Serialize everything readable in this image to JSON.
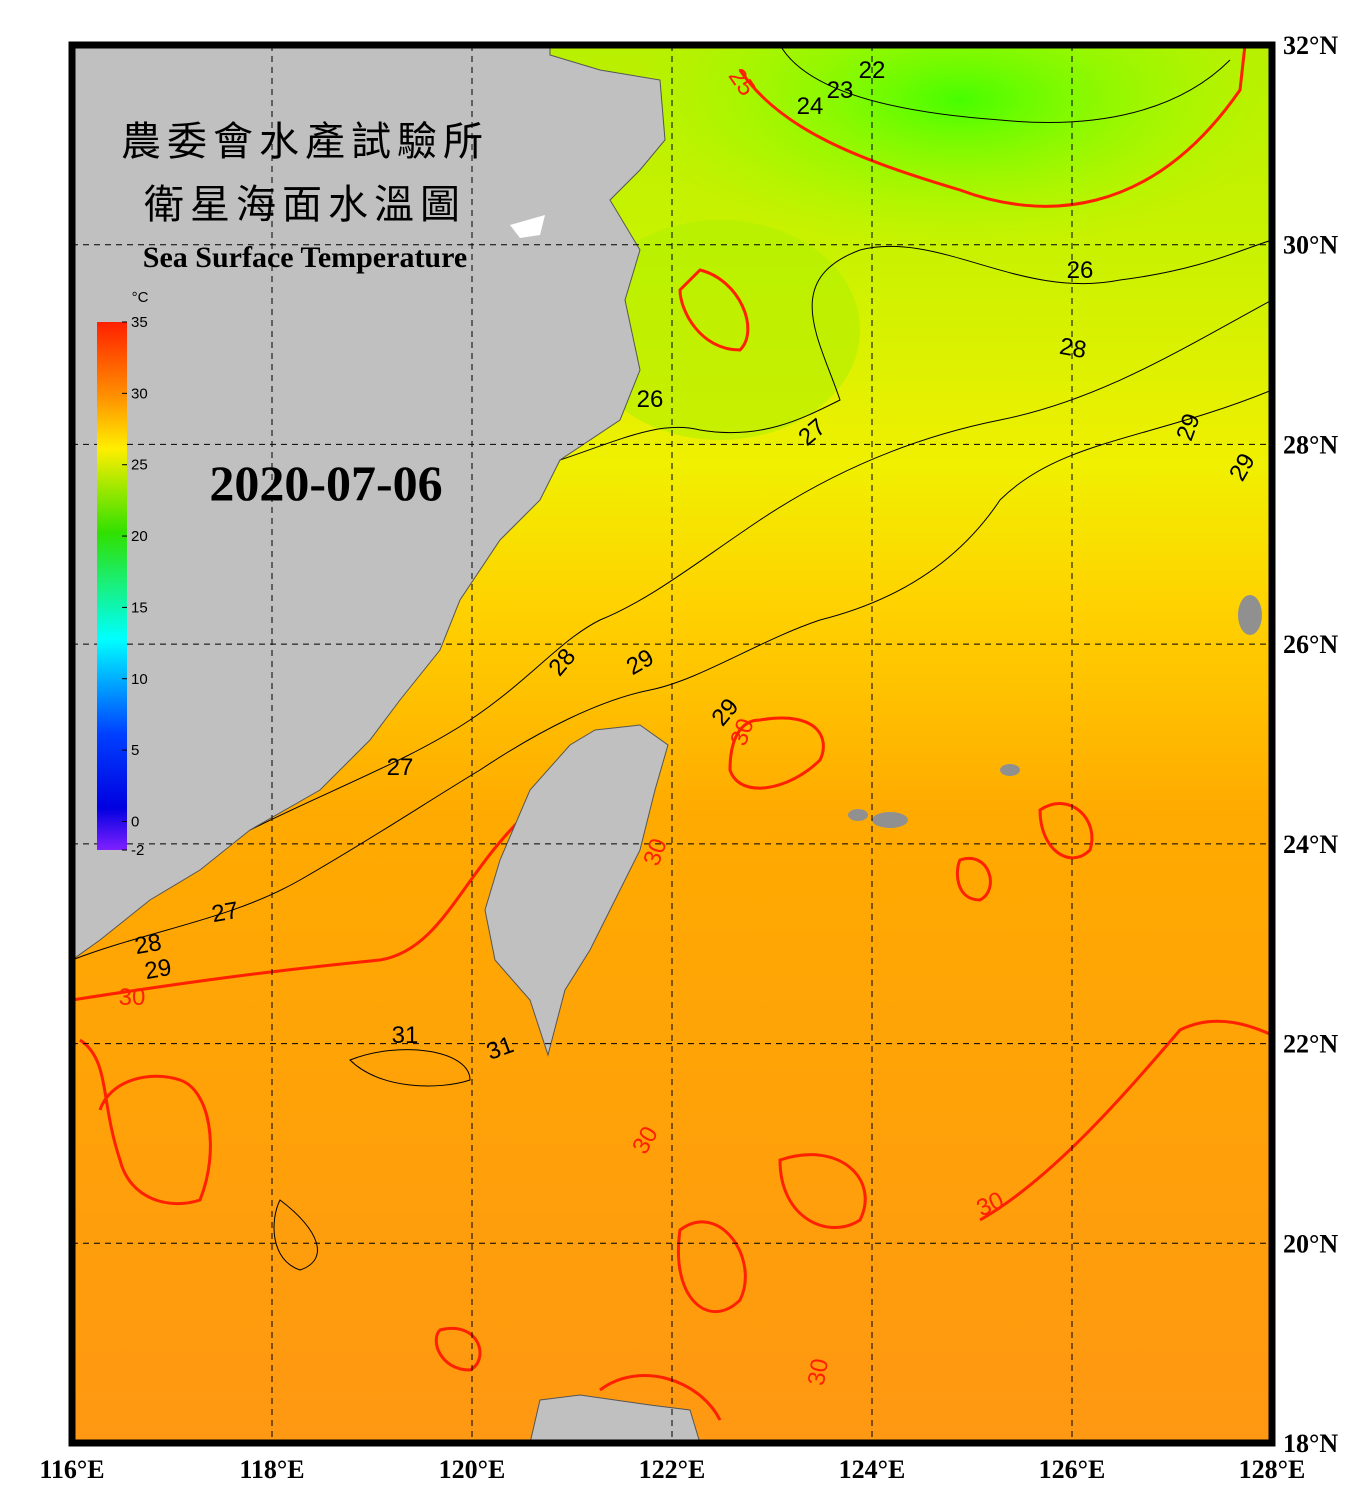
{
  "header": {
    "title_lines": [
      "農委會水產試驗所",
      "衛星海面水溫圖"
    ],
    "subtitle": "Sea Surface Temperature",
    "date": "2020-07-06"
  },
  "colorbar": {
    "unit": "°C",
    "ticks": [
      35,
      30,
      25,
      20,
      15,
      10,
      5,
      0,
      -2
    ]
  },
  "axes": {
    "longitude_labels": [
      "116°E",
      "118°E",
      "120°E",
      "122°E",
      "124°E",
      "126°E",
      "128°E"
    ],
    "latitude_labels": [
      "32°N",
      "30°N",
      "28°N",
      "26°N",
      "24°N",
      "22°N",
      "20°N",
      "18°N"
    ]
  },
  "contour_labels": [
    22,
    23,
    24,
    25,
    26,
    28,
    26,
    27,
    29,
    29,
    28,
    29,
    29,
    30,
    27,
    30,
    27,
    28,
    29,
    30,
    31,
    31,
    30,
    30,
    30
  ]
}
